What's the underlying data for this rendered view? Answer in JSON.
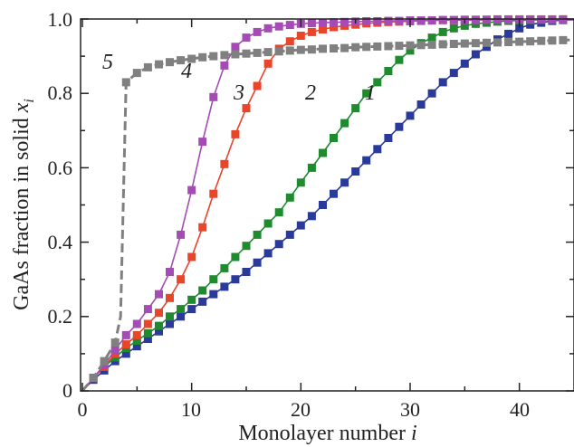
{
  "chart_data": {
    "type": "line",
    "xlabel": "Monolayer number",
    "xlabel_var": "i",
    "ylabel": "GaAs fraction in solid",
    "ylabel_var": "x",
    "ylabel_sub": "i",
    "xlim": [
      0,
      45
    ],
    "ylim": [
      0,
      1.0
    ],
    "x_ticks": [
      0,
      10,
      20,
      30,
      40
    ],
    "x_tick_labels": [
      "0",
      "10",
      "20",
      "30",
      "40"
    ],
    "y_ticks": [
      0,
      0.2,
      0.4,
      0.6,
      0.8,
      1.0
    ],
    "y_tick_labels": [
      "0",
      "0.2",
      "0.4",
      "0.6",
      "0.8",
      "1.0"
    ],
    "grid": false,
    "legend": "none (curves labeled directly)",
    "series": [
      {
        "name": "1",
        "color": "#2a3a9a",
        "marker": "square",
        "dashed": false,
        "x": [
          1,
          2,
          3,
          4,
          5,
          6,
          7,
          8,
          9,
          10,
          11,
          12,
          13,
          14,
          15,
          16,
          17,
          18,
          19,
          20,
          21,
          22,
          23,
          24,
          25,
          26,
          27,
          28,
          29,
          30,
          31,
          32,
          33,
          34,
          35,
          36,
          37,
          38,
          39,
          40,
          41,
          42,
          43,
          44,
          45
        ],
        "y": [
          0.03,
          0.055,
          0.08,
          0.1,
          0.12,
          0.14,
          0.16,
          0.18,
          0.2,
          0.22,
          0.24,
          0.26,
          0.28,
          0.3,
          0.32,
          0.345,
          0.37,
          0.395,
          0.42,
          0.445,
          0.47,
          0.5,
          0.53,
          0.56,
          0.59,
          0.62,
          0.65,
          0.68,
          0.71,
          0.74,
          0.77,
          0.8,
          0.83,
          0.855,
          0.88,
          0.905,
          0.925,
          0.945,
          0.96,
          0.975,
          0.985,
          0.99,
          0.995,
          0.997,
          0.998
        ]
      },
      {
        "name": "2",
        "color": "#1f8a2e",
        "marker": "square",
        "dashed": false,
        "x": [
          1,
          2,
          3,
          4,
          5,
          6,
          7,
          8,
          9,
          10,
          11,
          12,
          13,
          14,
          15,
          16,
          17,
          18,
          19,
          20,
          21,
          22,
          23,
          24,
          25,
          26,
          27,
          28,
          29,
          30,
          31,
          32,
          33,
          34,
          35,
          36,
          37,
          38,
          39,
          40,
          41,
          42,
          43,
          44,
          45
        ],
        "y": [
          0.035,
          0.065,
          0.09,
          0.115,
          0.135,
          0.155,
          0.175,
          0.2,
          0.22,
          0.245,
          0.27,
          0.3,
          0.33,
          0.36,
          0.39,
          0.42,
          0.45,
          0.48,
          0.52,
          0.56,
          0.6,
          0.64,
          0.68,
          0.72,
          0.76,
          0.8,
          0.83,
          0.86,
          0.89,
          0.915,
          0.935,
          0.95,
          0.965,
          0.975,
          0.982,
          0.987,
          0.99,
          0.993,
          0.995,
          0.996,
          0.997,
          0.998,
          0.998,
          0.999,
          0.999
        ]
      },
      {
        "name": "3",
        "color": "#e8452a",
        "marker": "square",
        "dashed": false,
        "x": [
          1,
          2,
          3,
          4,
          5,
          6,
          7,
          8,
          9,
          10,
          11,
          12,
          13,
          14,
          15,
          16,
          17,
          18,
          19,
          20,
          21,
          22,
          23,
          24,
          25,
          26,
          27,
          28,
          29,
          30,
          31,
          32,
          33,
          34,
          35,
          36,
          37,
          38,
          39,
          40,
          41,
          42,
          43,
          44,
          45
        ],
        "y": [
          0.035,
          0.065,
          0.1,
          0.125,
          0.15,
          0.18,
          0.21,
          0.25,
          0.3,
          0.36,
          0.44,
          0.53,
          0.61,
          0.69,
          0.76,
          0.82,
          0.88,
          0.92,
          0.94,
          0.955,
          0.965,
          0.972,
          0.978,
          0.982,
          0.985,
          0.988,
          0.99,
          0.992,
          0.993,
          0.994,
          0.995,
          0.996,
          0.997,
          0.997,
          0.998,
          0.998,
          0.998,
          0.999,
          0.999,
          0.999,
          0.999,
          0.999,
          0.999,
          0.999,
          0.999
        ]
      },
      {
        "name": "4",
        "color": "#a44bb5",
        "marker": "square",
        "dashed": false,
        "x": [
          1,
          2,
          3,
          4,
          5,
          6,
          7,
          8,
          9,
          10,
          11,
          12,
          13,
          14,
          15,
          16,
          17,
          18,
          19,
          20,
          21,
          22,
          23,
          24,
          25,
          26,
          27,
          28,
          29,
          30,
          31,
          32,
          33,
          34,
          35,
          36,
          37,
          38,
          39,
          40,
          41,
          42,
          43,
          44,
          45
        ],
        "y": [
          0.035,
          0.07,
          0.11,
          0.15,
          0.18,
          0.22,
          0.26,
          0.32,
          0.42,
          0.54,
          0.67,
          0.79,
          0.875,
          0.925,
          0.95,
          0.965,
          0.975,
          0.98,
          0.984,
          0.987,
          0.989,
          0.99,
          0.991,
          0.992,
          0.993,
          0.994,
          0.994,
          0.995,
          0.995,
          0.996,
          0.996,
          0.996,
          0.997,
          0.997,
          0.997,
          0.997,
          0.998,
          0.998,
          0.998,
          0.998,
          0.998,
          0.998,
          0.998,
          0.998,
          0.998
        ]
      },
      {
        "name": "5",
        "color": "#808080",
        "marker": "square",
        "dashed": true,
        "x": [
          1,
          2,
          3,
          3.5,
          4,
          5,
          6,
          7,
          8,
          9,
          10,
          11,
          12,
          13,
          14,
          15,
          16,
          17,
          18,
          19,
          20,
          21,
          22,
          23,
          24,
          25,
          26,
          27,
          28,
          29,
          30,
          31,
          32,
          33,
          34,
          35,
          36,
          37,
          38,
          39,
          40,
          41,
          42,
          43,
          44,
          45
        ],
        "y": [
          0.035,
          0.08,
          0.13,
          0.2,
          0.83,
          0.855,
          0.87,
          0.878,
          0.884,
          0.889,
          0.893,
          0.897,
          0.9,
          0.903,
          0.905,
          0.907,
          0.909,
          0.911,
          0.913,
          0.915,
          0.917,
          0.918,
          0.92,
          0.921,
          0.922,
          0.924,
          0.925,
          0.926,
          0.927,
          0.928,
          0.929,
          0.93,
          0.931,
          0.932,
          0.933,
          0.934,
          0.935,
          0.936,
          0.937,
          0.938,
          0.939,
          0.94,
          0.941,
          0.942,
          0.943,
          0.944
        ]
      }
    ]
  }
}
